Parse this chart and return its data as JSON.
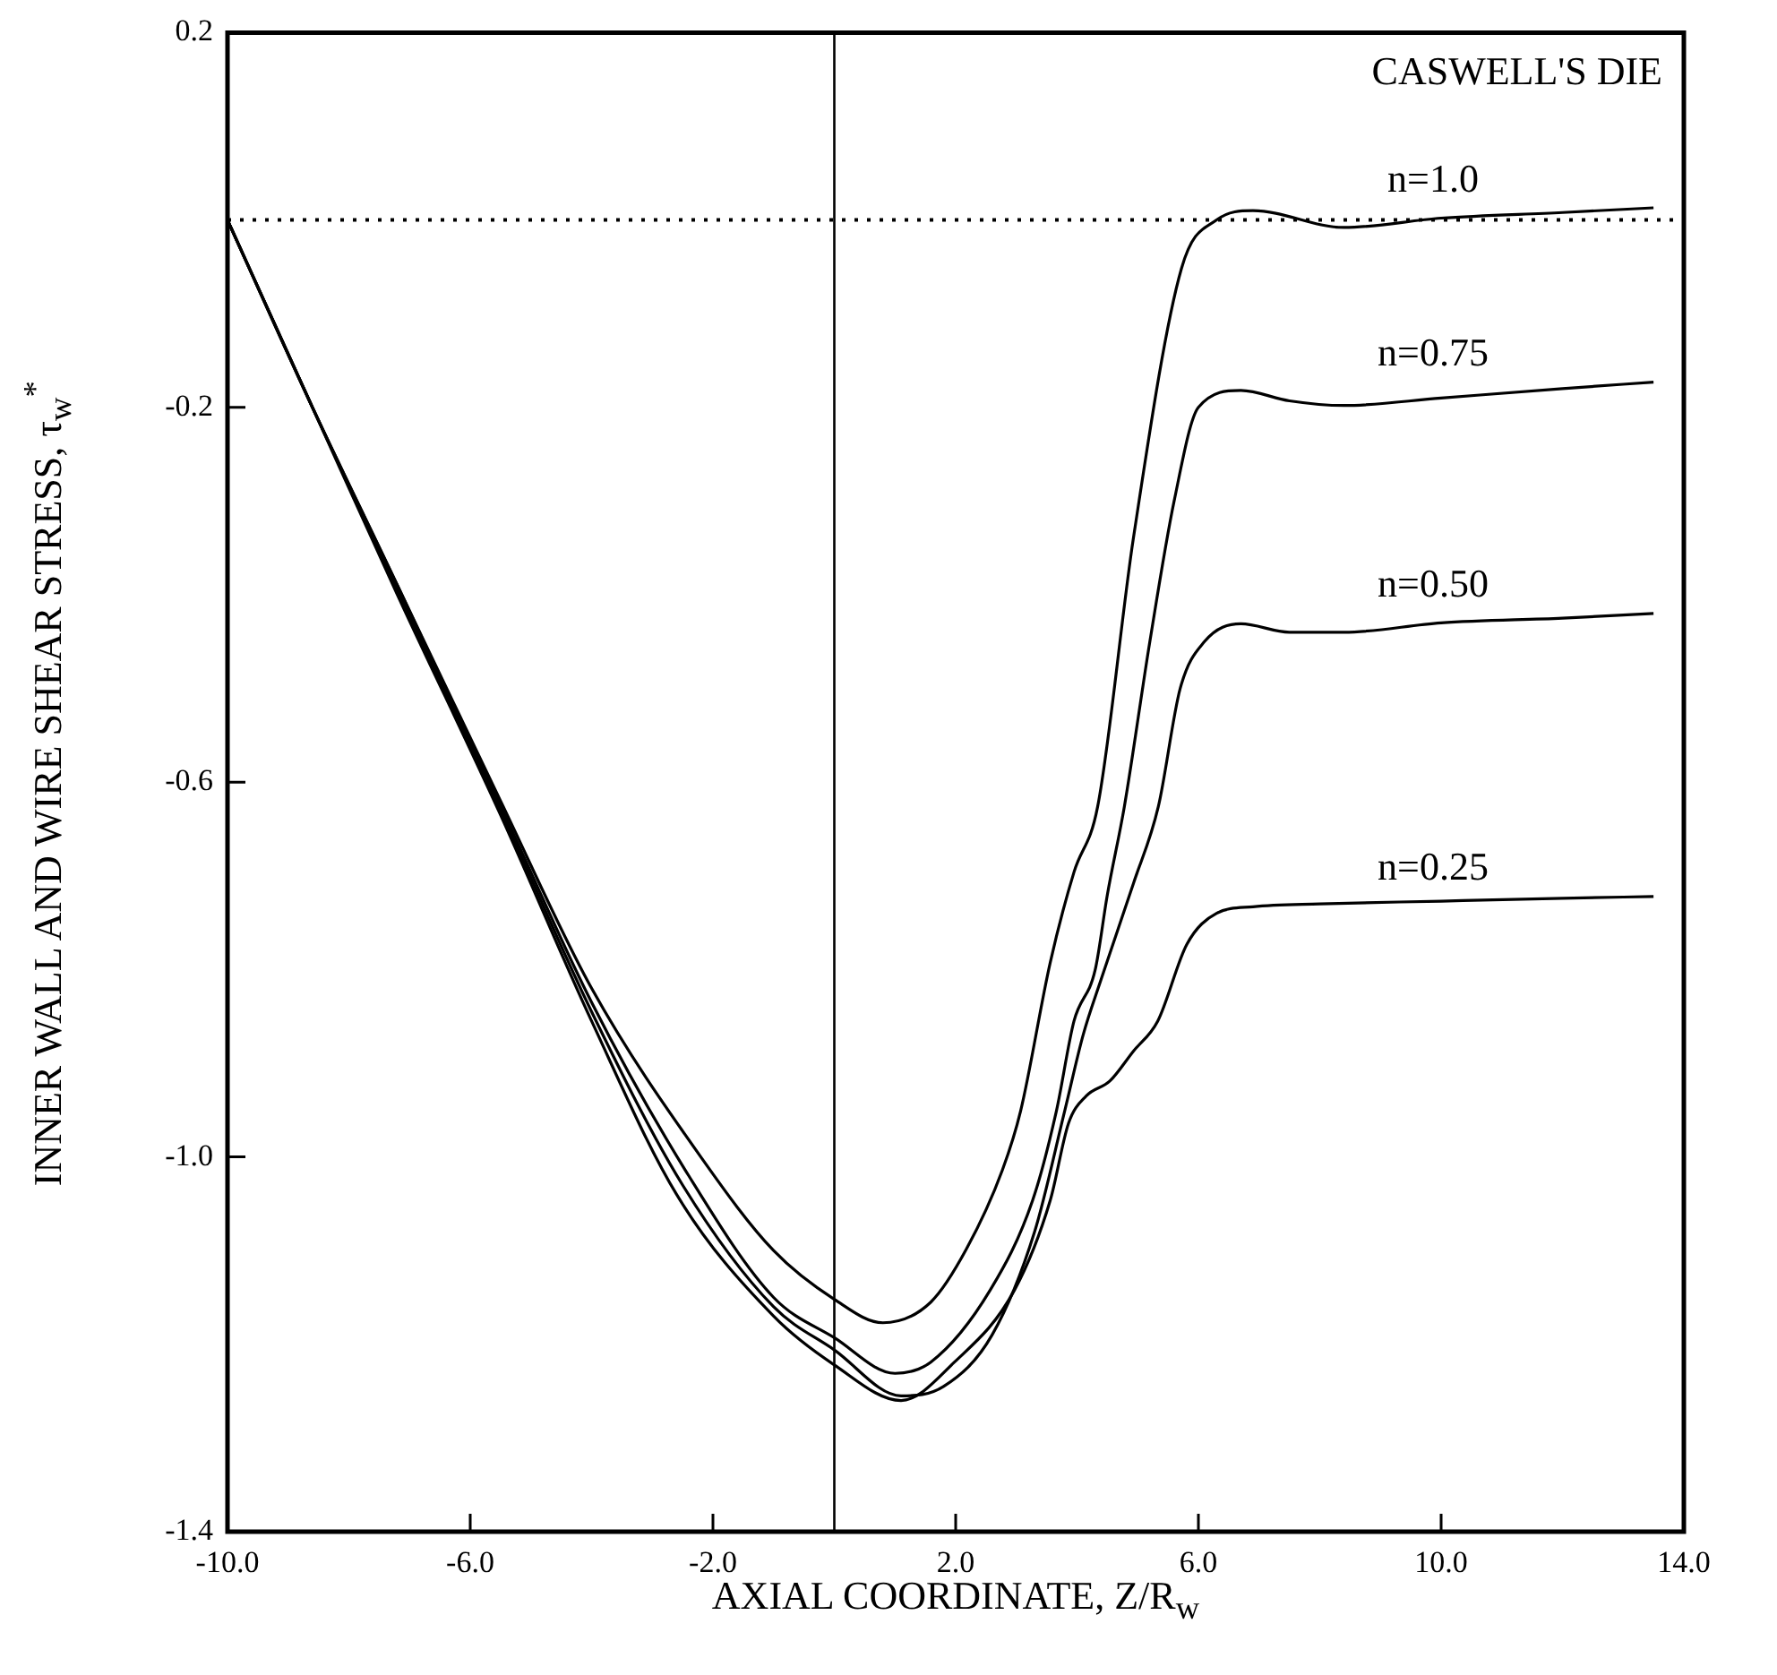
{
  "chart_data": {
    "type": "line",
    "xlabel": "AXIAL COORDINATE, Z/R$_{w}$",
    "ylabel": "INNER WALL AND WIRE SHEAR STRESS, τ$_{w}$$^{*}$",
    "annotations": [
      "CASWELL'S DIE"
    ],
    "xlim": [
      -10,
      14
    ],
    "xticks": [
      {
        "value": -10,
        "label": "-10.0"
      },
      {
        "value": -6,
        "label": "-6.0"
      },
      {
        "value": -2,
        "label": "-2.0"
      },
      {
        "value": 2,
        "label": "2.0"
      },
      {
        "value": 6,
        "label": "6.0"
      },
      {
        "value": 10,
        "label": "10.0"
      },
      {
        "value": 14,
        "label": "14.0"
      }
    ],
    "ylim": [
      -1.4,
      0.2
    ],
    "yticks": [
      0.2,
      -0.2,
      -0.6,
      {
        "value": -1.0,
        "label": "-1.0"
      },
      -1.4
    ],
    "grid": false,
    "legend": false,
    "marker": "none",
    "ref_lines": [
      {
        "axis": "y",
        "value": 0,
        "line_style": "dotted",
        "color": "#000000"
      },
      {
        "axis": "x",
        "value": 0,
        "line_style": "solid",
        "color": "#000000"
      }
    ],
    "series": [
      {
        "name": "n=1.0",
        "color": "#000000",
        "x": [
          -10,
          -8.6,
          -7.2,
          -5.5,
          -4,
          -2.2,
          -1,
          0,
          0.8,
          1.59,
          2.18,
          2.77,
          3.07,
          3.56,
          3.95,
          4.34,
          4.93,
          5.72,
          6.3,
          6.9,
          8.4,
          10,
          12,
          13.5
        ],
        "values": [
          0,
          -0.2,
          -0.39,
          -0.62,
          -0.82,
          -1.0,
          -1.1,
          -1.152,
          -1.177,
          -1.155,
          -1.098,
          -1.014,
          -0.951,
          -0.792,
          -0.696,
          -0.626,
          -0.339,
          -0.052,
          0,
          0.01,
          -0.008,
          0.002,
          0.008,
          0.013
        ]
      },
      {
        "name": "n=0.75",
        "color": "#000000",
        "x": [
          -10,
          -8.6,
          -7.2,
          -5.5,
          -4,
          -2.4,
          -1,
          0,
          1.0,
          1.59,
          2.57,
          3.27,
          3.66,
          3.95,
          4.3,
          4.5,
          4.78,
          5.2,
          5.6,
          6.0,
          6.7,
          7.5,
          8.4,
          10,
          12,
          13.5
        ],
        "values": [
          0,
          -0.2,
          -0.39,
          -0.625,
          -0.835,
          -1.02,
          -1.15,
          -1.193,
          -1.231,
          -1.219,
          -1.142,
          -1.046,
          -0.951,
          -0.855,
          -0.8,
          -0.72,
          -0.626,
          -0.45,
          -0.3,
          -0.2,
          -0.182,
          -0.193,
          -0.198,
          -0.19,
          -0.18,
          -0.173
        ]
      },
      {
        "name": "n=0.50",
        "color": "#000000",
        "x": [
          -10,
          -8.6,
          -7.2,
          -5.5,
          -4,
          -2.5,
          -1,
          0,
          1.1,
          1.8,
          2.6,
          3.3,
          3.8,
          4.1,
          4.4,
          4.93,
          5.34,
          5.7,
          6.1,
          6.7,
          7.5,
          8.4,
          10,
          12,
          13.5
        ],
        "values": [
          0,
          -0.2,
          -0.395,
          -0.63,
          -0.845,
          -1.03,
          -1.16,
          -1.206,
          -1.255,
          -1.245,
          -1.19,
          -1.08,
          -0.95,
          -0.87,
          -0.81,
          -0.708,
          -0.626,
          -0.5,
          -0.45,
          -0.431,
          -0.44,
          -0.44,
          -0.43,
          -0.425,
          -0.42
        ]
      },
      {
        "name": "n=0.25",
        "color": "#000000",
        "x": [
          -10,
          -8.6,
          -7.2,
          -5.5,
          -4,
          -2.6,
          -1,
          0,
          1.1,
          1.98,
          2.97,
          3.56,
          3.86,
          4.15,
          4.54,
          4.93,
          5.33,
          5.81,
          6.3,
          6.9,
          8,
          10,
          12,
          13.5
        ],
        "values": [
          0,
          -0.2,
          -0.4,
          -0.635,
          -0.855,
          -1.04,
          -1.17,
          -1.222,
          -1.26,
          -1.219,
          -1.142,
          -1.046,
          -0.964,
          -0.935,
          -0.919,
          -0.887,
          -0.855,
          -0.773,
          -0.74,
          -0.733,
          -0.73,
          -0.727,
          -0.724,
          -0.722
        ]
      }
    ]
  }
}
